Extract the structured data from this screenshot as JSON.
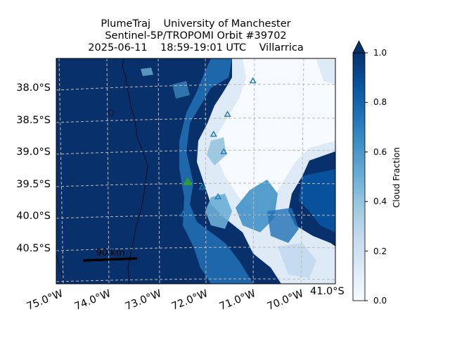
{
  "header": {
    "line1": "PlumeTraj    University of Manchester",
    "line2": "Sentinel-5P/TROPOMI Orbit #39702",
    "line3": "2025-06-11    18:59-19:01 UTC    Villarrica"
  },
  "axes": {
    "lat_ticks": [
      "38.0°S",
      "38.5°S",
      "39.0°S",
      "39.5°S",
      "40.0°S",
      "40.5°S"
    ],
    "lat_values": [
      -38.0,
      -38.5,
      -39.0,
      -39.5,
      -40.0,
      -40.5
    ],
    "lon_ticks": [
      "75.0°W",
      "74.0°W",
      "73.0°W",
      "72.0°W",
      "71.0°W",
      "70.0°W"
    ],
    "lon_values": [
      -75.0,
      -74.0,
      -73.0,
      -72.0,
      -71.0,
      -70.0
    ],
    "corner_label": "41.0°S"
  },
  "map_extent": {
    "lon_min": -74.0,
    "lon_max": -69.6,
    "lat_min": -41.0,
    "lat_max": -37.5
  },
  "scale_bar": {
    "label": "90 km"
  },
  "volcano": {
    "name": "Villarrica",
    "lat": -39.42,
    "lon": -71.93,
    "color": "#2ca02c"
  },
  "other_volcanoes": [
    {
      "lat": -37.85,
      "lon": -70.9
    },
    {
      "lat": -38.37,
      "lon": -71.3
    },
    {
      "lat": -38.68,
      "lon": -71.52
    },
    {
      "lat": -38.95,
      "lon": -71.36
    },
    {
      "lat": -39.5,
      "lon": -71.7
    },
    {
      "lat": -39.65,
      "lon": -71.45
    },
    {
      "lat": -39.92,
      "lon": -72.0
    }
  ],
  "colorbar": {
    "label": "Cloud Fraction",
    "ticks": [
      "0.0",
      "0.2",
      "0.4",
      "0.6",
      "0.8",
      "1.0"
    ],
    "values": [
      0.0,
      0.2,
      0.4,
      0.6,
      0.8,
      1.0
    ],
    "min": 0.0,
    "max": 1.0,
    "colors": [
      "#f7fbff",
      "#deebf7",
      "#c6dbef",
      "#9ecae1",
      "#6baed6",
      "#4292c6",
      "#2171b5",
      "#08519c",
      "#08306b"
    ]
  }
}
